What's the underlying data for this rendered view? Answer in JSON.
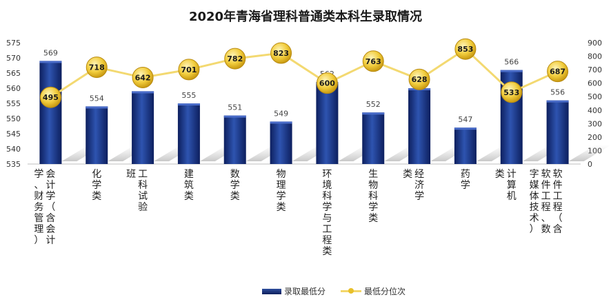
{
  "chart_data": {
    "type": "bar+line",
    "title": "2020年青海省理科普通类本科生录取情况",
    "categories": [
      "会计学（含会计学、财务管理）",
      "化学类",
      "工科试验班",
      "建筑类",
      "数学类",
      "物理学类",
      "环境科学与工程类",
      "生物科学类",
      "经济学类",
      "药学",
      "计算机类",
      "软件工程（含软件工程、数字媒体技术）"
    ],
    "series": [
      {
        "name": "录取最低分",
        "type": "bar",
        "axis": "left",
        "color": "#1a3a8c",
        "values": [
          569,
          554,
          559,
          555,
          551,
          549,
          562,
          552,
          560,
          547,
          566,
          556
        ]
      },
      {
        "name": "最低分位次",
        "type": "line",
        "axis": "right",
        "color": "#f0d060",
        "values": [
          495,
          718,
          642,
          701,
          782,
          823,
          600,
          763,
          628,
          853,
          533,
          687
        ]
      }
    ],
    "ylim_left": [
      535,
      575
    ],
    "yticks_left": [
      535,
      540,
      545,
      550,
      555,
      560,
      565,
      570,
      575
    ],
    "ylim_right": [
      0,
      900
    ],
    "yticks_right": [
      0,
      100,
      200,
      300,
      400,
      500,
      600,
      700,
      800,
      900
    ],
    "grid": false,
    "legend_position": "bottom"
  }
}
